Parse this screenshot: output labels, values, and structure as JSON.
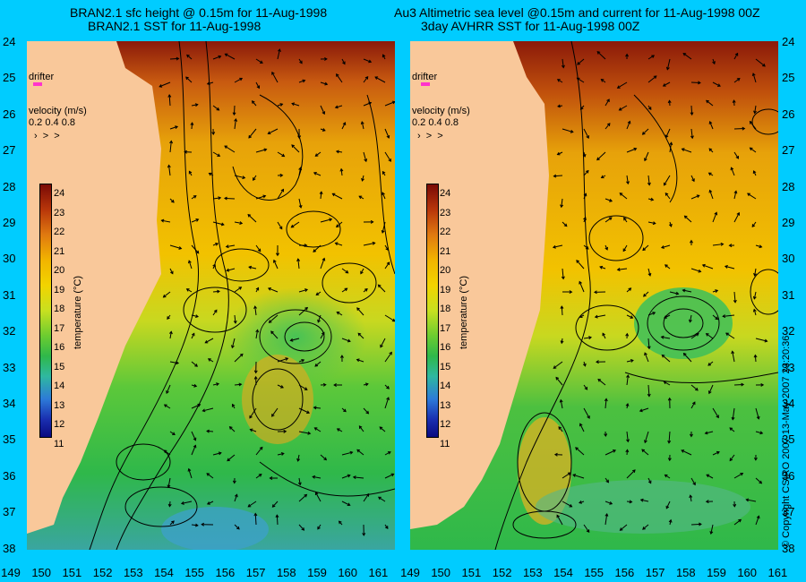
{
  "left_panel": {
    "title_line1": "BRAN2.1 sfc height @ 0.15m for 11-Aug-1998",
    "title_line2": "BRAN2.1 SST for 11-Aug-1998"
  },
  "right_panel": {
    "title_line1": "Au3 Altimetric sea level  @0.15m and current for 11-Aug-1998 00Z",
    "title_line2": "3day AVHRR SST for 11-Aug-1998 00Z"
  },
  "drifter_label": "drifter",
  "velocity_legend": {
    "title": "velocity (m/s)",
    "scale": "0.2 0.4 0.8"
  },
  "colorbar": {
    "axis_label": "temperature (°C)",
    "ticks": [
      "24",
      "23",
      "22",
      "21",
      "20",
      "19",
      "18",
      "17",
      "16",
      "15",
      "14",
      "13",
      "12",
      "11"
    ]
  },
  "y_axis_ticks": [
    "24",
    "25",
    "26",
    "27",
    "28",
    "29",
    "30",
    "31",
    "32",
    "33",
    "34",
    "35",
    "36",
    "37",
    "38"
  ],
  "x_axis_left_ticks": [
    "149",
    "150",
    "151",
    "152",
    "153",
    "154",
    "155",
    "156",
    "157",
    "158",
    "159",
    "160",
    "161"
  ],
  "x_axis_right_ticks": [
    "149",
    "150",
    "151",
    "152",
    "153",
    "154",
    "155",
    "156",
    "157",
    "158",
    "159",
    "160",
    "161"
  ],
  "copyright": "© Copyright CSIRO 2007   13-May-2007 23:20:36",
  "colors": {
    "background": "#00ccff",
    "land": "#f9c89a",
    "warm": "#8b1a0a",
    "mid": "#f2c200",
    "cool": "#2fb84a",
    "drifter": "#ff33cc"
  }
}
